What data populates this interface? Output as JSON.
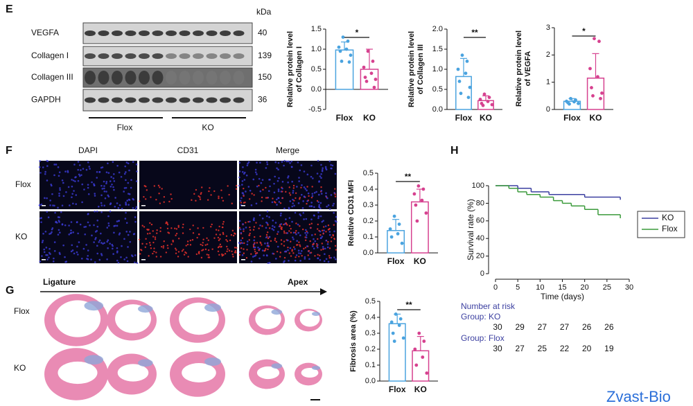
{
  "panel_labels": [
    "E",
    "F",
    "G",
    "H"
  ],
  "blot": {
    "unit": "kDa",
    "bands": [
      {
        "name": "VEGFA",
        "kda": 40
      },
      {
        "name": "Collagen I",
        "kda": 139
      },
      {
        "name": "Collagen III",
        "kda": 150
      },
      {
        "name": "GAPDH",
        "kda": 36
      }
    ],
    "groups": [
      "Flox",
      "KO"
    ]
  },
  "imaging": {
    "columns": [
      "DAPI",
      "CD31",
      "Merge"
    ],
    "rows": [
      "Flox",
      "KO"
    ]
  },
  "histology": {
    "start": "Ligature",
    "end": "Apex",
    "rows": [
      "Flox",
      "KO"
    ]
  },
  "chart_data": [
    {
      "type": "bar",
      "ylabel": [
        "Relative protein level",
        "of Collagen I"
      ],
      "categories": [
        "Flox",
        "KO"
      ],
      "values": [
        0.98,
        0.5
      ],
      "errors": [
        0.2,
        0.5
      ],
      "colors": [
        "#4aa3df",
        "#d6418f"
      ],
      "points": [
        [
          1.3,
          1.2,
          1.05,
          1.0,
          0.95,
          0.85,
          0.7,
          0.68
        ],
        [
          0.95,
          0.7,
          0.55,
          0.4,
          0.3,
          0.25,
          0.2,
          0.05
        ]
      ],
      "significance": "*",
      "ylim": [
        -0.5,
        1.5
      ],
      "yticks": [
        -0.5,
        {
          "value": 0,
          "label": "0.0"
        },
        0.5,
        {
          "value": 1,
          "label": "1.0"
        },
        1.5
      ]
    },
    {
      "type": "bar",
      "ylabel": [
        "Relative protein level",
        "of Collagen III"
      ],
      "categories": [
        "Flox",
        "KO"
      ],
      "values": [
        0.82,
        0.22
      ],
      "errors": [
        0.45,
        0.12
      ],
      "colors": [
        "#4aa3df",
        "#d6418f"
      ],
      "points": [
        [
          1.35,
          1.2,
          1.0,
          0.9,
          0.7,
          0.55,
          0.4,
          0.3
        ],
        [
          0.38,
          0.3,
          0.25,
          0.2,
          0.15,
          0.12,
          0.1
        ]
      ],
      "significance": "**",
      "ylim": [
        0,
        2
      ],
      "yticks": [
        {
          "value": 0,
          "label": "0.0"
        },
        0.5,
        {
          "value": 1,
          "label": "1.0"
        },
        1.5,
        {
          "value": 2,
          "label": "2.0"
        }
      ]
    },
    {
      "type": "bar",
      "ylabel": [
        "Relative protein level",
        "of VEGFA"
      ],
      "categories": [
        "Flox",
        "KO"
      ],
      "values": [
        0.3,
        1.15
      ],
      "errors": [
        0.1,
        0.9
      ],
      "colors": [
        "#4aa3df",
        "#d6418f"
      ],
      "points": [
        [
          0.4,
          0.35,
          0.3,
          0.28,
          0.25,
          0.22,
          0.2
        ],
        [
          2.6,
          2.5,
          1.5,
          1.2,
          0.8,
          0.6,
          0.5,
          0.4
        ]
      ],
      "significance": "*",
      "ylim": [
        0,
        3
      ],
      "yticks": [
        0,
        1,
        2,
        3
      ]
    },
    {
      "type": "bar",
      "ylabel": [
        "Relative CD31 MFI"
      ],
      "categories": [
        "Flox",
        "KO"
      ],
      "values": [
        0.14,
        0.32
      ],
      "errors": [
        0.07,
        0.08
      ],
      "colors": [
        "#4aa3df",
        "#d6418f"
      ],
      "points": [
        [
          0.23,
          0.18,
          0.15,
          0.12,
          0.1,
          0.06
        ],
        [
          0.42,
          0.4,
          0.37,
          0.33,
          0.3,
          0.25,
          0.2
        ]
      ],
      "significance": "**",
      "ylim": [
        0,
        0.5
      ],
      "yticks": [
        {
          "value": 0,
          "label": "0.0"
        },
        0.1,
        0.2,
        0.3,
        0.4,
        0.5
      ]
    },
    {
      "type": "bar",
      "ylabel": [
        "Fibrosis area (%)"
      ],
      "categories": [
        "Flox",
        "KO"
      ],
      "values": [
        0.36,
        0.19
      ],
      "errors": [
        0.06,
        0.09
      ],
      "colors": [
        "#4aa3df",
        "#d6418f"
      ],
      "points": [
        [
          0.42,
          0.39,
          0.37,
          0.35,
          0.3,
          0.27,
          0.25
        ],
        [
          0.3,
          0.25,
          0.2,
          0.15,
          0.1,
          0.05
        ]
      ],
      "significance": "**",
      "ylim": [
        0,
        0.5
      ],
      "yticks": [
        {
          "value": 0,
          "label": "0.0"
        },
        0.1,
        0.2,
        0.3,
        0.4,
        0.5
      ]
    },
    {
      "type": "line",
      "xlabel": "Time (days)",
      "ylabel": "Survival rate (%)",
      "series": [
        {
          "name": "KO",
          "color": "#3b3fa0",
          "x": [
            0,
            5,
            8,
            12,
            20,
            28
          ],
          "values": [
            100,
            97,
            93,
            90,
            87,
            84
          ]
        },
        {
          "name": "Flox",
          "color": "#3a9a3a",
          "x": [
            0,
            3,
            5,
            7,
            10,
            13,
            15,
            17,
            20,
            23,
            28
          ],
          "values": [
            100,
            97,
            93,
            90,
            87,
            83,
            80,
            77,
            73,
            67,
            63
          ]
        }
      ],
      "xlim": [
        0,
        30
      ],
      "xticks": [
        0,
        5,
        10,
        15,
        20,
        25,
        30
      ],
      "ylim": [
        0,
        100
      ],
      "yticks": [
        0,
        20,
        40,
        60,
        80,
        100
      ],
      "legend": "right"
    }
  ],
  "risk_table": {
    "title": "Number at risk",
    "groups": [
      {
        "label": "Group: KO",
        "counts": [
          30,
          29,
          27,
          27,
          26,
          26
        ]
      },
      {
        "label": "Group: Flox",
        "counts": [
          30,
          27,
          25,
          22,
          20,
          19
        ]
      }
    ]
  },
  "watermark": "Zvast-Bio"
}
